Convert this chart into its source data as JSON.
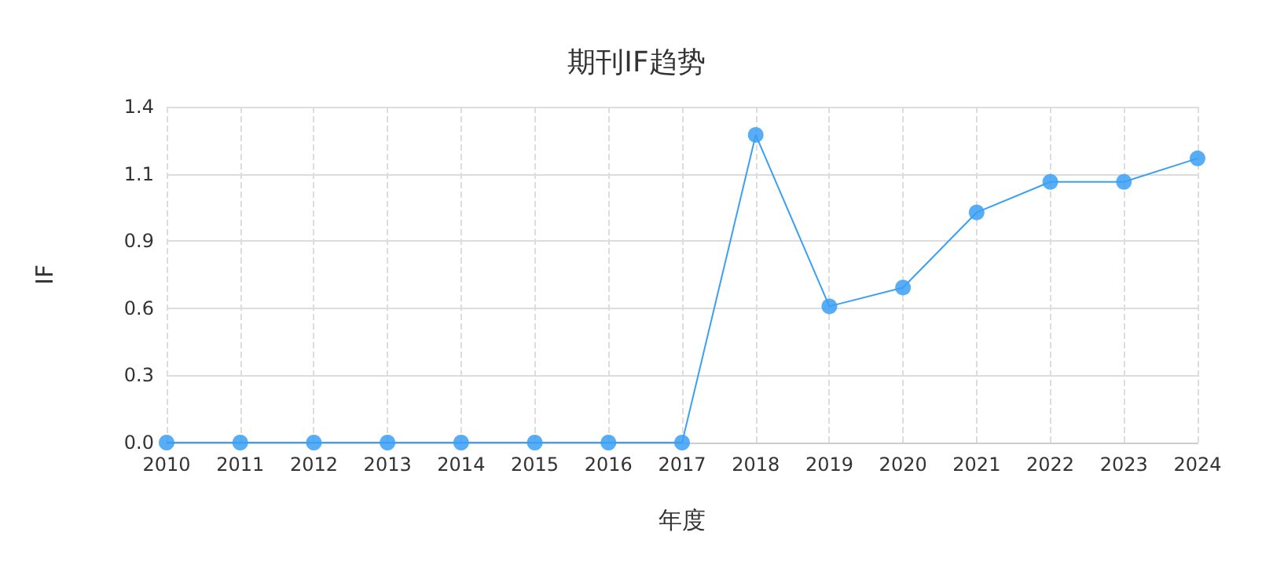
{
  "chart_data": {
    "type": "line",
    "title": "期刊IF趋势",
    "xlabel": "年度",
    "ylabel": "IF",
    "categories": [
      "2010",
      "2011",
      "2012",
      "2013",
      "2014",
      "2015",
      "2016",
      "2017",
      "2018",
      "2019",
      "2020",
      "2021",
      "2022",
      "2023",
      "2024"
    ],
    "series": [
      {
        "color": "#3ba0f5",
        "values": [
          0,
          0,
          0,
          0,
          0,
          0,
          0,
          0,
          1.31,
          0.58,
          0.66,
          0.98,
          1.11,
          1.11,
          1.21
        ]
      }
    ],
    "ylim": [
      0,
      1.43
    ],
    "yticks": [
      {
        "value": 0,
        "label": "0.0"
      },
      {
        "value": 0.286,
        "label": "0.3"
      },
      {
        "value": 0.572,
        "label": "0.6"
      },
      {
        "value": 0.858,
        "label": "0.9"
      },
      {
        "value": 1.144,
        "label": "1.1"
      },
      {
        "value": 1.43,
        "label": "1.4"
      }
    ],
    "grid": true,
    "marker": "circle",
    "line_style": "solid"
  }
}
